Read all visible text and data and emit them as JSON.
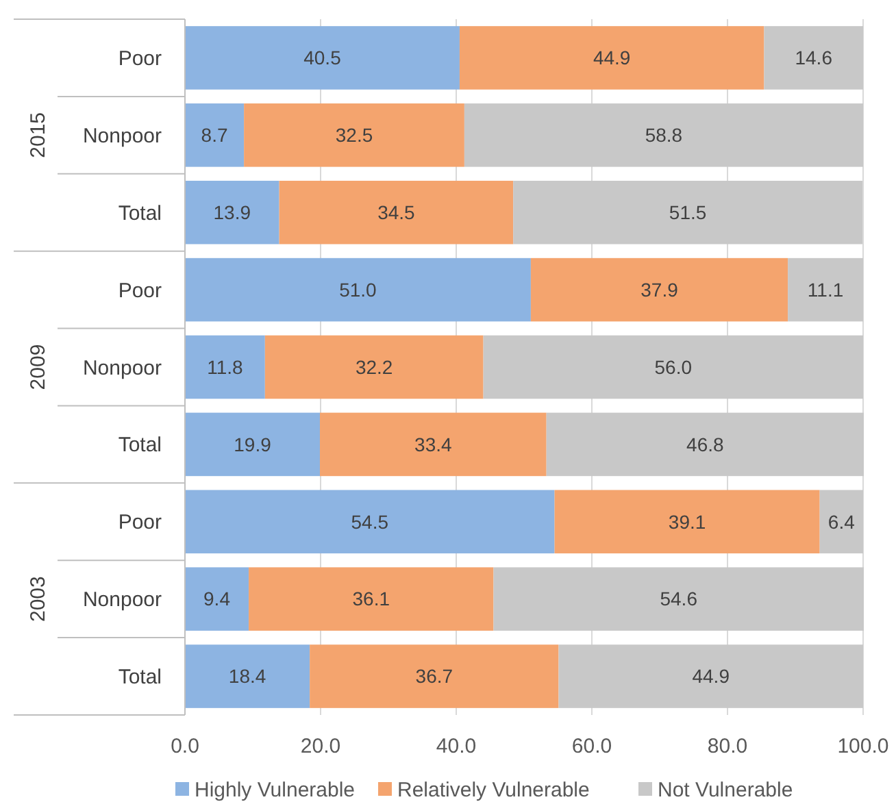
{
  "chart_data": {
    "type": "bar",
    "orientation": "horizontal",
    "stacked": true,
    "categories": [
      "Poor",
      "Nonpoor",
      "Total",
      "Poor",
      "Nonpoor",
      "Total",
      "Poor",
      "Nonpoor",
      "Total"
    ],
    "annotations": [
      "2015",
      "2009",
      "2003"
    ],
    "series": [
      {
        "name": "Highly Vulnerable",
        "color": "#8db4e2",
        "values": [
          40.5,
          8.7,
          13.9,
          51.0,
          11.8,
          19.9,
          54.5,
          9.4,
          18.4
        ],
        "value_labels": [
          "40.5",
          "8.7",
          "13.9",
          "51.0",
          "11.8",
          "19.9",
          "54.5",
          "9.4",
          "18.4"
        ]
      },
      {
        "name": "Relatively Vulnerable",
        "color": "#f4a46e",
        "values": [
          44.9,
          32.5,
          34.5,
          37.9,
          32.2,
          33.4,
          39.1,
          36.1,
          36.7
        ],
        "value_labels": [
          "44.9",
          "32.5",
          "34.5",
          "37.9",
          "32.2",
          "33.4",
          "39.1",
          "36.1",
          "36.7"
        ]
      },
      {
        "name": "Not Vulnerable",
        "color": "#c8c8c8",
        "values": [
          14.6,
          58.8,
          51.5,
          11.1,
          56.0,
          46.8,
          6.4,
          54.6,
          44.9
        ],
        "value_labels": [
          "14.6",
          "58.8",
          "51.5",
          "11.1",
          "56.0",
          "46.8",
          "6.4",
          "54.6",
          "44.9"
        ]
      }
    ],
    "xlim": [
      0,
      100
    ],
    "xticks": [
      {
        "value": 0,
        "label": "0.0"
      },
      {
        "value": 20,
        "label": "20.0"
      },
      {
        "value": 40,
        "label": "40.0"
      },
      {
        "value": 60,
        "label": "60.0"
      },
      {
        "value": 80,
        "label": "80.0"
      },
      {
        "value": 100,
        "label": "100.0"
      }
    ],
    "grid": "x",
    "legend": "bottom"
  }
}
